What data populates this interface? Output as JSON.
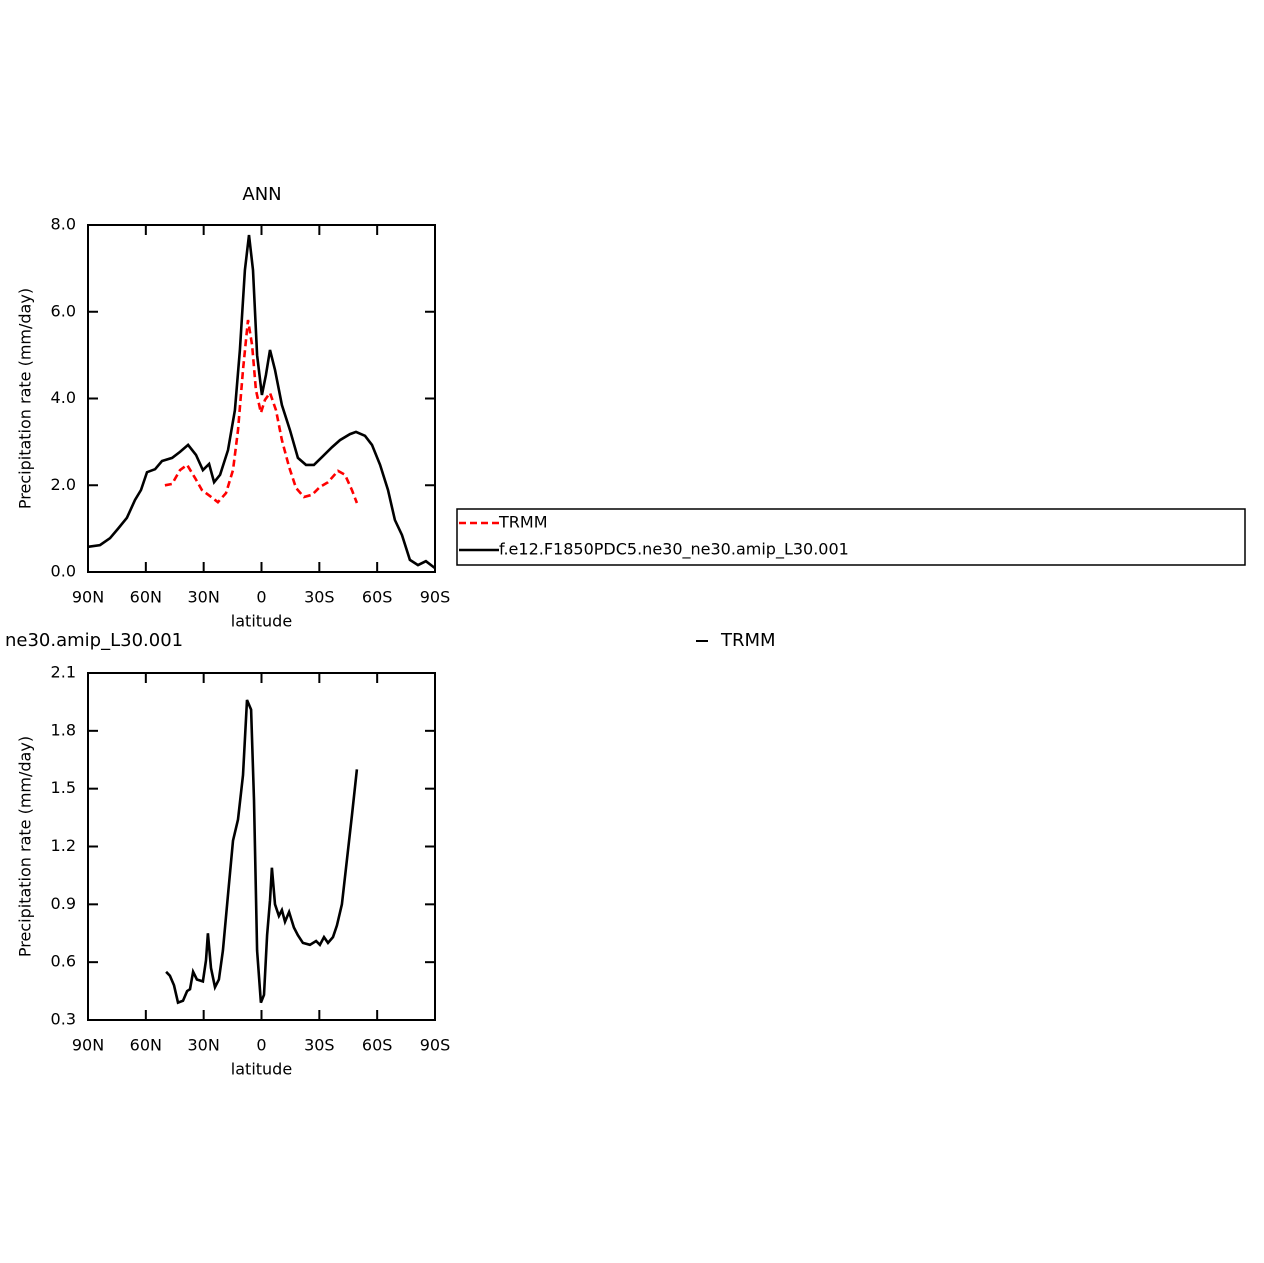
{
  "chart_data": [
    {
      "type": "line",
      "title": "ANN",
      "xlabel": "latitude",
      "ylabel": "Precipitation rate (mm/day)",
      "xlim": [
        90,
        -90
      ],
      "xticks": [
        {
          "value": 90,
          "label": "90N"
        },
        {
          "value": 60,
          "label": "60N"
        },
        {
          "value": 30,
          "label": "30N"
        },
        0,
        {
          "value": -30,
          "label": "30S"
        },
        {
          "value": -60,
          "label": "60S"
        },
        {
          "value": -90,
          "label": "90S"
        }
      ],
      "ylim": [
        0,
        8
      ],
      "yticks": [
        {
          "value": 0,
          "label": "0.0"
        },
        {
          "value": 2,
          "label": "2.0"
        },
        {
          "value": 4,
          "label": "4.0"
        },
        {
          "value": 6,
          "label": "6.0"
        },
        {
          "value": 8,
          "label": "8.0"
        }
      ],
      "legend": "right",
      "series": [
        {
          "name": "TRMM",
          "color": "#ff0000",
          "linestyle": "dashed",
          "x": [
            50.1,
            46.4,
            42.3,
            38.6,
            34.5,
            30.9,
            26.7,
            22.6,
            18.4,
            14.8,
            12.2,
            9.6,
            7,
            4.9,
            2.9,
            0.3,
            -1.8,
            -4.4,
            -7.5,
            -10.6,
            -14.3,
            -17.9,
            -22,
            -26.2,
            -30.3,
            -34.5,
            -39.7,
            -43.3,
            -46.9,
            -49.5
          ],
          "values": [
            2.0,
            2.03,
            2.35,
            2.47,
            2.17,
            1.89,
            1.75,
            1.61,
            1.82,
            2.35,
            3.27,
            4.66,
            5.81,
            5.23,
            4.2,
            3.67,
            3.97,
            4.13,
            3.73,
            3.04,
            2.42,
            1.94,
            1.73,
            1.78,
            1.96,
            2.07,
            2.33,
            2.24,
            1.89,
            1.59
          ]
        },
        {
          "name": "f.e12.F1850PDC5.ne30_ne30.amip_L30.001",
          "color": "#000000",
          "linestyle": "solid",
          "x": [
            90,
            83.8,
            78.6,
            74.4,
            69.8,
            65.6,
            62.5,
            59.4,
            55.2,
            51.6,
            46.4,
            42.3,
            38.1,
            34,
            30.4,
            27.2,
            24.6,
            21.5,
            17.4,
            13.8,
            11.2,
            8.6,
            6.5,
            4.4,
            2.3,
            -0.2,
            -2.3,
            -4.4,
            -7,
            -10.6,
            -14.8,
            -18.9,
            -23.1,
            -27.2,
            -31.4,
            -36.6,
            -40.7,
            -45.9,
            -49,
            -53.7,
            -57.3,
            -61.5,
            -65.6,
            -69.2,
            -72.9,
            -77,
            -81.2,
            -85.3,
            -90
          ],
          "values": [
            0.58,
            0.62,
            0.78,
            1.0,
            1.25,
            1.66,
            1.89,
            2.3,
            2.37,
            2.56,
            2.63,
            2.77,
            2.93,
            2.7,
            2.35,
            2.49,
            2.07,
            2.24,
            2.81,
            3.73,
            5.12,
            6.96,
            7.77,
            6.96,
            5.0,
            4.08,
            4.54,
            5.12,
            4.66,
            3.85,
            3.27,
            2.63,
            2.47,
            2.47,
            2.65,
            2.88,
            3.04,
            3.18,
            3.23,
            3.14,
            2.93,
            2.47,
            1.89,
            1.2,
            0.85,
            0.28,
            0.16,
            0.25,
            0.09
          ]
        }
      ]
    },
    {
      "type": "line",
      "title": "ne30.amip_L30.001",
      "xlabel": "latitude",
      "ylabel": "Precipitation rate (mm/day)",
      "xlim": [
        90,
        -90
      ],
      "xticks": [
        {
          "value": 90,
          "label": "90N"
        },
        {
          "value": 60,
          "label": "60N"
        },
        {
          "value": 30,
          "label": "30N"
        },
        0,
        {
          "value": -30,
          "label": "30S"
        },
        {
          "value": -60,
          "label": "60S"
        },
        {
          "value": -90,
          "label": "90S"
        }
      ],
      "ylim": [
        0.3,
        2.1
      ],
      "yticks": [
        0.3,
        0.6,
        0.9,
        1.2,
        1.5,
        1.8,
        2.1
      ],
      "legend": "top",
      "series": [
        {
          "name": "TRMM",
          "color": "#000000",
          "linestyle": "solid",
          "x": [
            49.5,
            47.5,
            45.4,
            43.3,
            40.7,
            38.6,
            37.1,
            35.5,
            33.5,
            30.4,
            28.8,
            27.8,
            26.2,
            24.1,
            22.1,
            20,
            17.4,
            14.8,
            12.2,
            9.6,
            7.5,
            5.4,
            3.9,
            2.3,
            0.3,
            -1.3,
            -2.9,
            -4.4,
            -5.4,
            -7,
            -9,
            -10.6,
            -12.2,
            -14.3,
            -16.8,
            -18.9,
            -21.5,
            -25.1,
            -28.3,
            -30.3,
            -32.4,
            -34.5,
            -37.1,
            -39.1,
            -41.7,
            -44.3,
            -46.9,
            -49.5
          ],
          "values": [
            0.55,
            0.53,
            0.48,
            0.39,
            0.4,
            0.45,
            0.46,
            0.55,
            0.51,
            0.5,
            0.61,
            0.75,
            0.57,
            0.47,
            0.51,
            0.66,
            0.95,
            1.23,
            1.34,
            1.57,
            1.96,
            1.91,
            1.44,
            0.66,
            0.39,
            0.43,
            0.74,
            0.92,
            1.09,
            0.9,
            0.84,
            0.87,
            0.81,
            0.86,
            0.78,
            0.74,
            0.7,
            0.69,
            0.71,
            0.69,
            0.73,
            0.7,
            0.73,
            0.79,
            0.9,
            1.13,
            1.36,
            1.6
          ]
        }
      ]
    }
  ]
}
